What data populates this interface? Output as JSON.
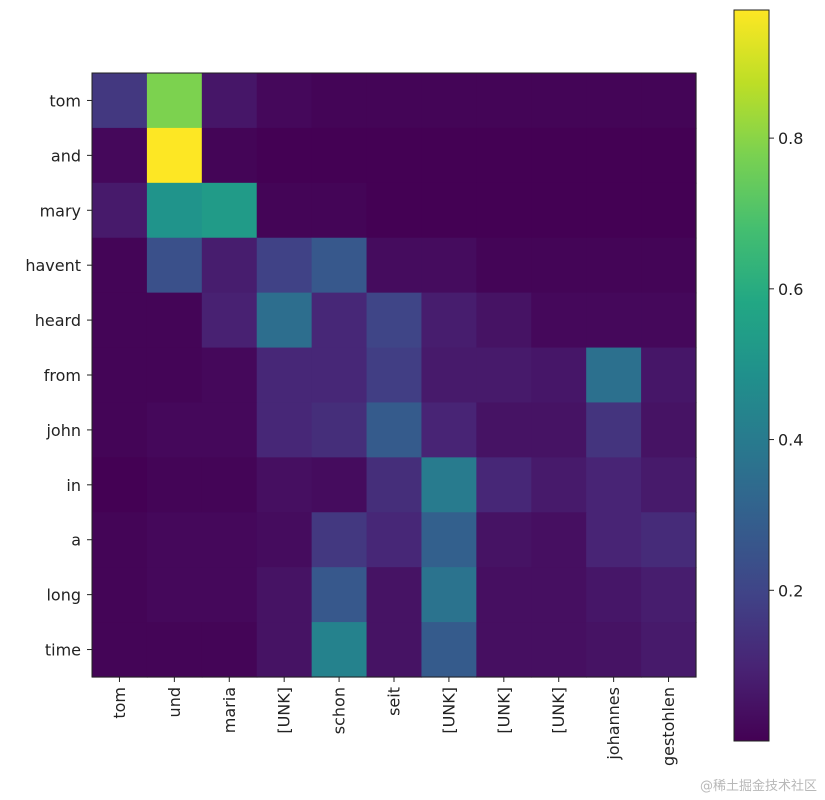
{
  "chart_data": {
    "type": "heatmap",
    "title": "",
    "xlabel": "",
    "ylabel": "",
    "x_categories": [
      "tom",
      "und",
      "maria",
      "[UNK]",
      "schon",
      "seit",
      "[UNK]",
      "[UNK]",
      "[UNK]",
      "johannes",
      "gestohlen"
    ],
    "y_categories": [
      "tom",
      "and",
      "mary",
      "havent",
      "heard",
      "from",
      "john",
      "in",
      "a",
      "long",
      "time"
    ],
    "values": [
      [
        0.16,
        0.78,
        0.06,
        0.02,
        0.01,
        0.01,
        0.01,
        0.01,
        0.01,
        0.01,
        0.01
      ],
      [
        0.02,
        0.97,
        0.01,
        0.0,
        0.0,
        0.0,
        0.0,
        0.0,
        0.0,
        0.0,
        0.0
      ],
      [
        0.07,
        0.5,
        0.53,
        0.01,
        0.01,
        0.0,
        0.0,
        0.0,
        0.0,
        0.0,
        0.0
      ],
      [
        0.01,
        0.24,
        0.08,
        0.19,
        0.27,
        0.03,
        0.03,
        0.01,
        0.01,
        0.01,
        0.01
      ],
      [
        0.01,
        0.01,
        0.09,
        0.35,
        0.11,
        0.2,
        0.08,
        0.05,
        0.02,
        0.02,
        0.02
      ],
      [
        0.01,
        0.01,
        0.02,
        0.11,
        0.11,
        0.18,
        0.07,
        0.07,
        0.06,
        0.36,
        0.06
      ],
      [
        0.01,
        0.02,
        0.02,
        0.11,
        0.13,
        0.28,
        0.1,
        0.05,
        0.05,
        0.15,
        0.05
      ],
      [
        0.0,
        0.01,
        0.01,
        0.04,
        0.03,
        0.13,
        0.4,
        0.11,
        0.07,
        0.1,
        0.07
      ],
      [
        0.01,
        0.02,
        0.02,
        0.03,
        0.16,
        0.11,
        0.3,
        0.05,
        0.04,
        0.1,
        0.12
      ],
      [
        0.01,
        0.02,
        0.02,
        0.05,
        0.27,
        0.05,
        0.37,
        0.04,
        0.04,
        0.06,
        0.08
      ],
      [
        0.01,
        0.01,
        0.01,
        0.05,
        0.43,
        0.05,
        0.28,
        0.04,
        0.04,
        0.05,
        0.07
      ]
    ],
    "colormap": "viridis",
    "colorbar": {
      "range": [
        0.0,
        0.97
      ],
      "ticks": [
        0.2,
        0.4,
        0.6,
        0.8
      ],
      "tick_labels": [
        "0.2",
        "0.4",
        "0.6",
        "0.8"
      ]
    },
    "grid": false
  },
  "watermark": "@稀土掘金技术社区"
}
